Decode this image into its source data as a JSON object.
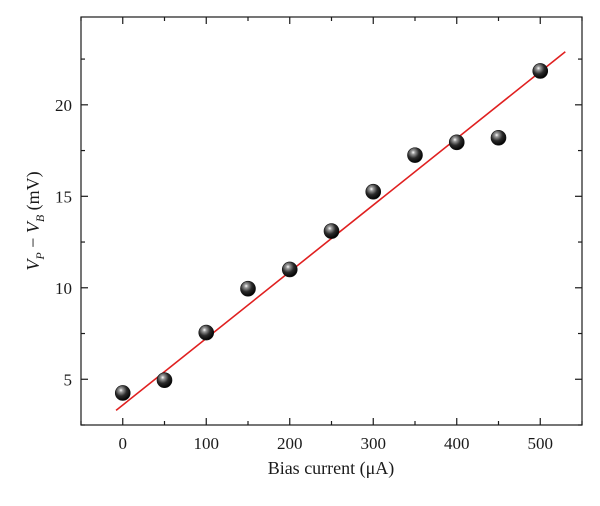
{
  "chart_data": {
    "type": "scatter",
    "title": "",
    "xlabel": "Bias current (μA)",
    "ylabel_parts": {
      "v1": "V",
      "s1": "P",
      "minus": " − ",
      "v2": "V",
      "s2": "B",
      "unit": " (mV)"
    },
    "xlim": [
      -50,
      550
    ],
    "ylim": [
      2.5,
      24.8
    ],
    "xticks": [
      0,
      100,
      200,
      300,
      400,
      500
    ],
    "xticks_minor": [
      -50,
      50,
      150,
      250,
      350,
      450,
      550
    ],
    "yticks": [
      5,
      10,
      15,
      20
    ],
    "yticks_minor": [
      2.5,
      7.5,
      12.5,
      17.5,
      22.5
    ],
    "grid": false,
    "series": [
      {
        "type": "scatter",
        "marker_color": "#111111",
        "x": [
          0,
          50,
          100,
          150,
          200,
          250,
          300,
          350,
          400,
          450,
          500
        ],
        "y": [
          4.25,
          4.95,
          7.55,
          9.95,
          11.0,
          13.1,
          15.25,
          17.25,
          17.95,
          18.2,
          21.85
        ]
      },
      {
        "type": "line",
        "color": "#e02020",
        "x": [
          -8,
          530
        ],
        "y": [
          3.3,
          22.9
        ]
      }
    ]
  }
}
